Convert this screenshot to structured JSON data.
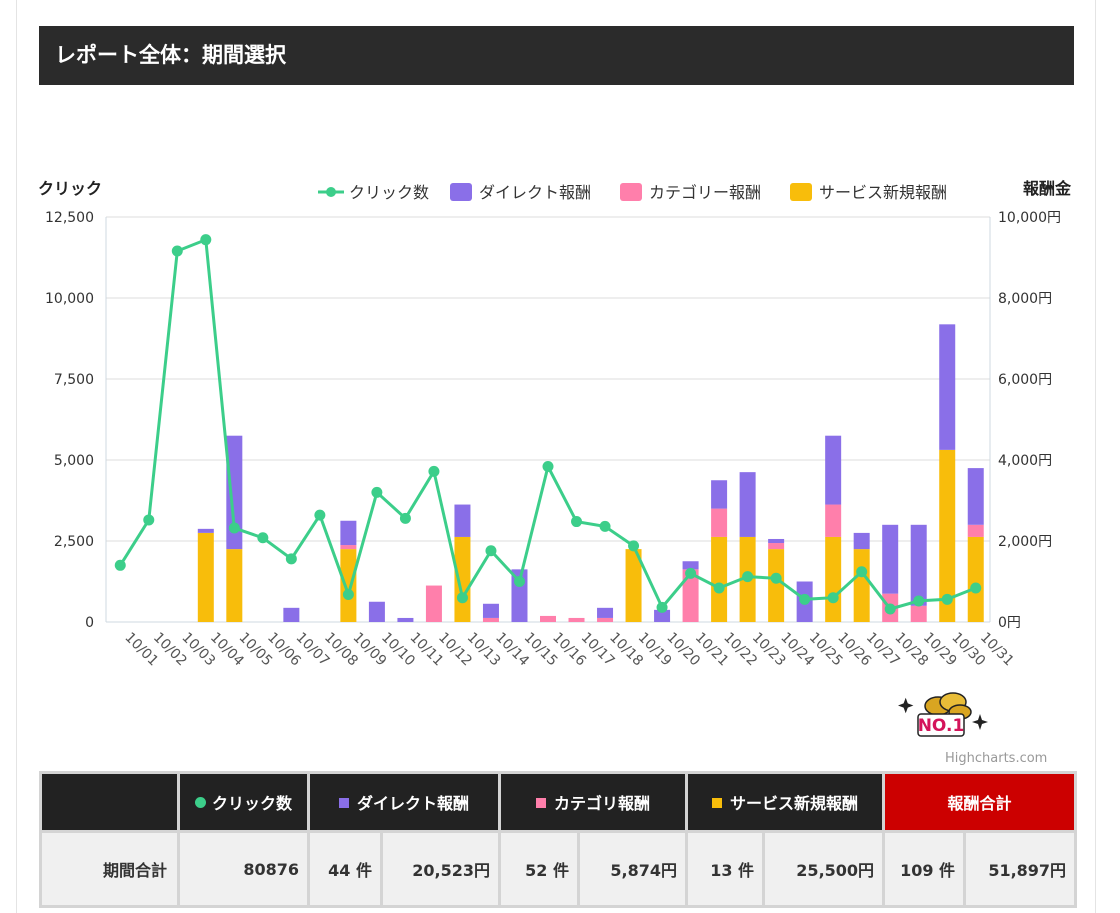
{
  "header": {
    "title": "レポート全体：期間選択"
  },
  "colors": {
    "clicks": "#3cce8a",
    "direct": "#8a6fe8",
    "category": "#ff7fab",
    "service": "#f8bd0b"
  },
  "chart_data": {
    "type": "bar+line",
    "y_left_label": "クリック",
    "y_right_label": "報酬金",
    "y_left_range": [
      0,
      12500
    ],
    "y_right_range": [
      0,
      10000
    ],
    "y_left_ticks": [
      "0",
      "2,500",
      "5,000",
      "7,500",
      "10,000",
      "12,500"
    ],
    "y_right_ticks": [
      "0円",
      "2,000円",
      "4,000円",
      "6,000円",
      "8,000円",
      "10,000円"
    ],
    "legend_placement": "top-right",
    "categories": [
      "10/01",
      "10/02",
      "10/03",
      "10/04",
      "10/05",
      "10/06",
      "10/07",
      "10/08",
      "10/09",
      "10/10",
      "10/11",
      "10/12",
      "10/13",
      "10/14",
      "10/15",
      "10/16",
      "10/17",
      "10/18",
      "10/19",
      "10/20",
      "10/21",
      "10/22",
      "10/23",
      "10/24",
      "10/25",
      "10/26",
      "10/27",
      "10/28",
      "10/29",
      "10/30",
      "10/31"
    ],
    "series": [
      {
        "name": "クリック数",
        "type": "line",
        "axis": "left",
        "values": [
          1750,
          3150,
          11450,
          11800,
          2900,
          2600,
          1950,
          3300,
          850,
          4000,
          3200,
          4650,
          750,
          2200,
          1250,
          4800,
          3100,
          2950,
          2350,
          450,
          1500,
          1050,
          1400,
          1350,
          700,
          750,
          1550,
          400,
          650,
          700,
          1050
        ]
      },
      {
        "name": "ダイレクト報酬",
        "type": "column",
        "axis": "right",
        "values": [
          0,
          0,
          0,
          100,
          2800,
          0,
          350,
          0,
          600,
          500,
          100,
          0,
          800,
          350,
          1300,
          0,
          0,
          250,
          0,
          300,
          200,
          700,
          1600,
          100,
          1000,
          1700,
          400,
          1700,
          2000,
          3100,
          1400
        ]
      },
      {
        "name": "カテゴリー報酬",
        "type": "column",
        "axis": "right",
        "values": [
          0,
          0,
          0,
          0,
          0,
          0,
          0,
          0,
          100,
          0,
          0,
          900,
          0,
          100,
          0,
          150,
          100,
          100,
          0,
          0,
          1300,
          700,
          0,
          150,
          0,
          800,
          0,
          700,
          400,
          0,
          300
        ]
      },
      {
        "name": "サービス新規報酬",
        "type": "column",
        "axis": "right",
        "values": [
          0,
          0,
          0,
          2200,
          1800,
          0,
          0,
          0,
          1800,
          0,
          0,
          0,
          2100,
          0,
          0,
          0,
          0,
          0,
          1800,
          0,
          0,
          2100,
          2100,
          1800,
          0,
          2100,
          1800,
          0,
          0,
          4250,
          2100
        ]
      }
    ]
  },
  "badge": {
    "text": "NO.1"
  },
  "credits": "Highcharts.com",
  "summary": {
    "headers": {
      "clicks": "クリック数",
      "direct": "ダイレクト報酬",
      "category": "カテゴリ報酬",
      "service": "サービス新規報酬",
      "total": "報酬合計"
    },
    "row": {
      "label": "期間合計",
      "clicks": "80876",
      "direct_count": "44 件",
      "direct_amount": "20,523円",
      "category_count": "52 件",
      "category_amount": "5,874円",
      "service_count": "13 件",
      "service_amount": "25,500円",
      "total_count": "109 件",
      "total_amount": "51,897円"
    }
  }
}
